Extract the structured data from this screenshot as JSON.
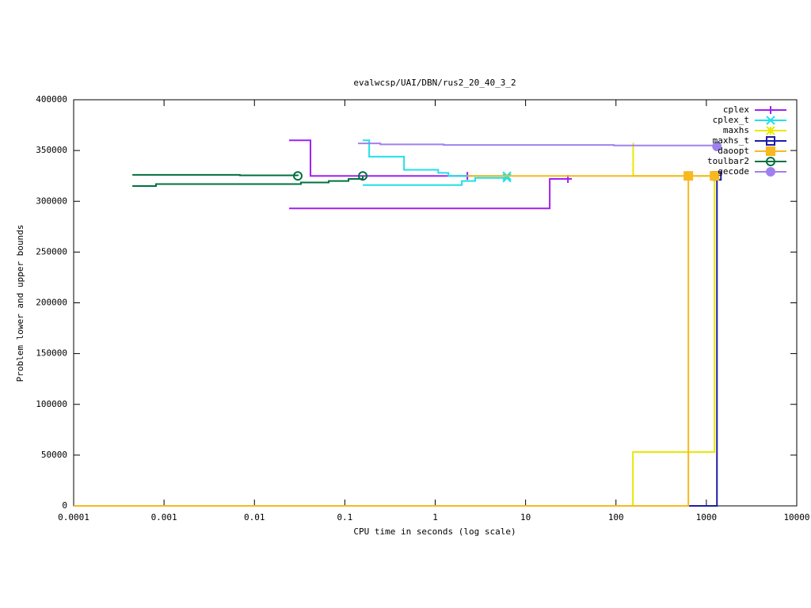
{
  "chart_data": {
    "type": "line",
    "steps": true,
    "title": "evalwcsp/UAI/DBN/rus2_20_40_3_2",
    "xlabel": "CPU time in seconds (log scale)",
    "ylabel": "Problem lower and upper bounds",
    "xscale": "log",
    "xlim": [
      0.0001,
      10000
    ],
    "xticks": [
      0.0001,
      0.001,
      0.01,
      0.1,
      1,
      10,
      100,
      1000,
      10000
    ],
    "ylim": [
      0,
      400000
    ],
    "yticks": [
      0,
      50000,
      100000,
      150000,
      200000,
      250000,
      300000,
      350000,
      400000
    ],
    "legend": "top-right",
    "series": [
      {
        "name": "cplex",
        "color": "#a020f0",
        "marker": "plus",
        "x": [
          0.0242,
          0.0417,
          2.27,
          null,
          0.0242,
          18.5,
          29.4
        ],
        "values": [
          360000,
          325000,
          325000,
          null,
          293000,
          322000,
          322000
        ]
      },
      {
        "name": "cplex_t",
        "color": "#20e0e8",
        "marker": "cross",
        "x": [
          0.158,
          0.186,
          0.452,
          1.08,
          1.4,
          6.22,
          null,
          0.158,
          1.97,
          2.77,
          6.22
        ],
        "values": [
          360000,
          344000,
          331000,
          328000,
          325000,
          325000,
          null,
          316000,
          320000,
          323000,
          323000
        ]
      },
      {
        "name": "maxhs",
        "color": "#e8e800",
        "marker": "star",
        "x": [
          154,
          155,
          1230,
          null,
          0.0001,
          154,
          1230
        ],
        "values": [
          357000,
          325000,
          325000,
          null,
          0,
          53000,
          325000
        ]
      },
      {
        "name": "maxhs_t",
        "color": "#1c1ca8",
        "marker": "box",
        "x": [
          0.0001,
          1310
        ],
        "values": [
          0,
          325000
        ]
      },
      {
        "name": "daoopt",
        "color": "#f8b820",
        "marker": "filled-box",
        "x": [
          2.27,
          632,
          1230,
          null,
          0.0001,
          632
        ],
        "values": [
          325000,
          325000,
          325000,
          null,
          0,
          325000
        ]
      },
      {
        "name": "toulbar2",
        "color": "#007040",
        "marker": "circle",
        "x": [
          0.000446,
          0.0069,
          0.0302,
          null,
          0.000446,
          0.000815,
          0.0327,
          0.0664,
          0.11,
          0.158
        ],
        "values": [
          326000,
          325500,
          325000,
          null,
          315000,
          317000,
          318500,
          320000,
          322000,
          325000
        ]
      },
      {
        "name": "gecode",
        "color": "#a080f0",
        "marker": "filled-circle",
        "x": [
          0.14,
          0.247,
          1.24,
          95,
          1310
        ],
        "values": [
          357000,
          356000,
          355500,
          355000,
          354000
        ]
      }
    ]
  }
}
